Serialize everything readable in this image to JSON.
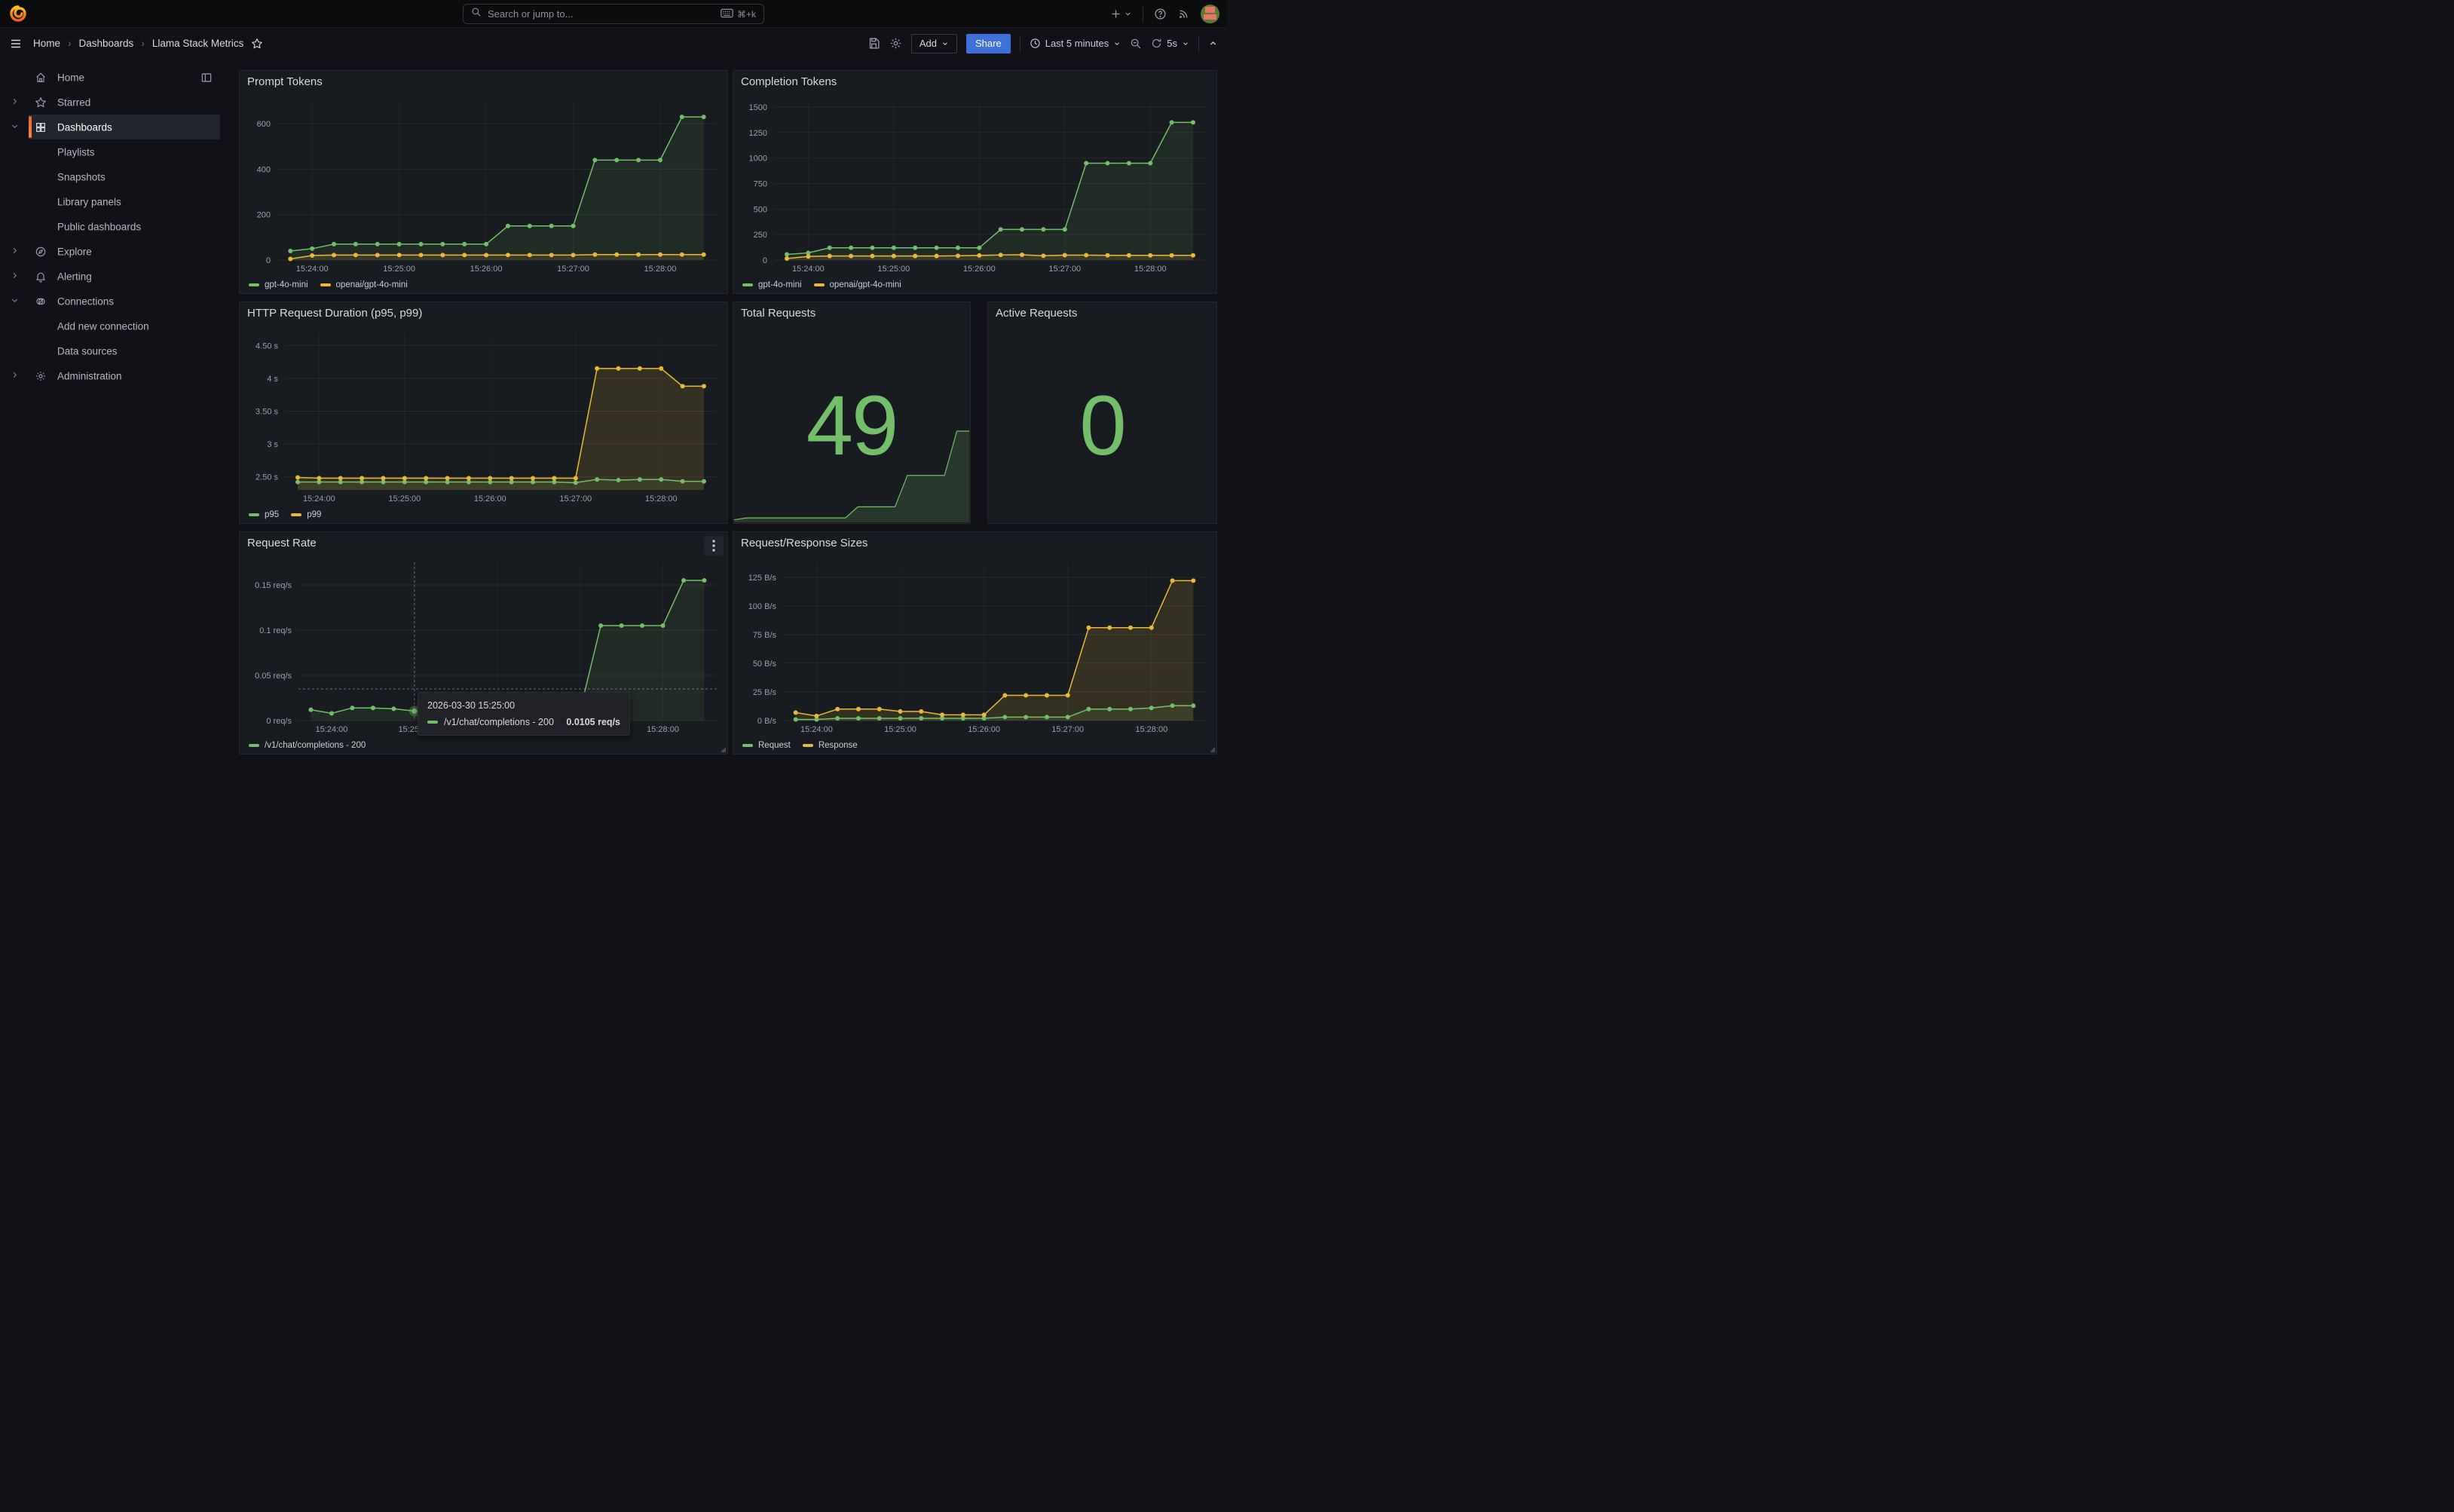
{
  "header": {
    "search_placeholder": "Search or jump to...",
    "search_shortcut": "⌘+k"
  },
  "breadcrumb": {
    "items": [
      "Home",
      "Dashboards",
      "Llama Stack Metrics"
    ]
  },
  "toolbar": {
    "add_label": "Add",
    "share_label": "Share",
    "time_range": "Last 5 minutes",
    "refresh_interval": "5s"
  },
  "sidebar": {
    "items": [
      {
        "label": "Home",
        "level": 0
      },
      {
        "label": "Starred",
        "level": 0
      },
      {
        "label": "Dashboards",
        "level": 0,
        "active": true
      },
      {
        "label": "Playlists",
        "level": 1
      },
      {
        "label": "Snapshots",
        "level": 1
      },
      {
        "label": "Library panels",
        "level": 1
      },
      {
        "label": "Public dashboards",
        "level": 1
      },
      {
        "label": "Explore",
        "level": 0
      },
      {
        "label": "Alerting",
        "level": 0
      },
      {
        "label": "Connections",
        "level": 0
      },
      {
        "label": "Add new connection",
        "level": 1
      },
      {
        "label": "Data sources",
        "level": 1
      },
      {
        "label": "Administration",
        "level": 0
      }
    ]
  },
  "stats": {
    "total_requests": {
      "title": "Total Requests",
      "value": "49"
    },
    "active_requests": {
      "title": "Active Requests",
      "value": "0"
    }
  },
  "tooltip": {
    "time": "2026-03-30 15:25:00",
    "series": "/v1/chat/completions - 200",
    "value": "0.0105 req/s"
  },
  "colors": {
    "green": "#73bf69",
    "yellow": "#eab839",
    "accent_blue": "#3d71d9",
    "stat_green": "#73bf69"
  },
  "chart_data": {
    "times": [
      "15:23:45",
      "15:24:00",
      "15:24:15",
      "15:24:30",
      "15:24:45",
      "15:25:00",
      "15:25:15",
      "15:25:30",
      "15:25:45",
      "15:26:00",
      "15:26:15",
      "15:26:30",
      "15:26:45",
      "15:27:00",
      "15:27:15",
      "15:27:30",
      "15:27:45",
      "15:28:00",
      "15:28:15",
      "15:28:30"
    ],
    "prompt_tokens": {
      "type": "line",
      "title": "Prompt Tokens",
      "margin_left": 46,
      "ylim": [
        0,
        700
      ],
      "yticks": [
        {
          "v": 0,
          "label": "0"
        },
        {
          "v": 200,
          "label": "200"
        },
        {
          "v": 400,
          "label": "400"
        },
        {
          "v": 600,
          "label": "600"
        }
      ],
      "xticks": [
        {
          "i": 1,
          "label": "15:24:00"
        },
        {
          "i": 5,
          "label": "15:25:00"
        },
        {
          "i": 9,
          "label": "15:26:00"
        },
        {
          "i": 13,
          "label": "15:27:00"
        },
        {
          "i": 17,
          "label": "15:28:00"
        }
      ],
      "series": [
        {
          "name": "gpt-4o-mini",
          "color": "#73bf69",
          "fill": 0.1,
          "values": [
            40,
            50,
            70,
            70,
            70,
            70,
            70,
            70,
            70,
            70,
            150,
            150,
            150,
            150,
            440,
            440,
            440,
            440,
            630,
            630
          ]
        },
        {
          "name": "openai/gpt-4o-mini",
          "color": "#eab839",
          "fill": 0.12,
          "values": [
            5,
            20,
            22,
            22,
            22,
            22,
            22,
            22,
            22,
            22,
            22,
            22,
            22,
            22,
            24,
            24,
            24,
            24,
            24,
            24
          ]
        }
      ]
    },
    "completion_tokens": {
      "type": "line",
      "title": "Completion Tokens",
      "margin_left": 50,
      "ylim": [
        0,
        1560
      ],
      "yticks": [
        {
          "v": 0,
          "label": "0"
        },
        {
          "v": 250,
          "label": "250"
        },
        {
          "v": 500,
          "label": "500"
        },
        {
          "v": 750,
          "label": "750"
        },
        {
          "v": 1000,
          "label": "1000"
        },
        {
          "v": 1250,
          "label": "1250"
        },
        {
          "v": 1500,
          "label": "1500"
        }
      ],
      "xticks": [
        {
          "i": 1,
          "label": "15:24:00"
        },
        {
          "i": 5,
          "label": "15:25:00"
        },
        {
          "i": 9,
          "label": "15:26:00"
        },
        {
          "i": 13,
          "label": "15:27:00"
        },
        {
          "i": 17,
          "label": "15:28:00"
        }
      ],
      "series": [
        {
          "name": "gpt-4o-mini",
          "color": "#73bf69",
          "fill": 0.1,
          "values": [
            55,
            70,
            120,
            120,
            120,
            120,
            120,
            120,
            120,
            120,
            300,
            300,
            300,
            300,
            950,
            950,
            950,
            950,
            1350,
            1350
          ]
        },
        {
          "name": "openai/gpt-4o-mini",
          "color": "#eab839",
          "fill": 0.12,
          "values": [
            15,
            35,
            40,
            40,
            40,
            40,
            40,
            40,
            42,
            45,
            50,
            52,
            42,
            48,
            48,
            46,
            46,
            46,
            46,
            46
          ]
        }
      ]
    },
    "http_duration": {
      "type": "line",
      "title": "HTTP Request Duration (p95, p99)",
      "margin_left": 56,
      "ylim": [
        2.3,
        4.7
      ],
      "yticks": [
        {
          "v": 2.5,
          "label": "2.50 s"
        },
        {
          "v": 3,
          "label": "3 s"
        },
        {
          "v": 3.5,
          "label": "3.50 s"
        },
        {
          "v": 4,
          "label": "4 s"
        },
        {
          "v": 4.5,
          "label": "4.50 s"
        }
      ],
      "xticks": [
        {
          "i": 1,
          "label": "15:24:00"
        },
        {
          "i": 5,
          "label": "15:25:00"
        },
        {
          "i": 9,
          "label": "15:26:00"
        },
        {
          "i": 13,
          "label": "15:27:00"
        },
        {
          "i": 17,
          "label": "15:28:00"
        }
      ],
      "series": [
        {
          "name": "p95",
          "color": "#73bf69",
          "fill": 0.1,
          "values": [
            2.42,
            2.42,
            2.42,
            2.42,
            2.42,
            2.42,
            2.42,
            2.42,
            2.42,
            2.42,
            2.42,
            2.42,
            2.42,
            2.41,
            2.46,
            2.45,
            2.46,
            2.46,
            2.43,
            2.43
          ]
        },
        {
          "name": "p99",
          "color": "#eab839",
          "fill": 0.14,
          "values": [
            2.49,
            2.48,
            2.48,
            2.48,
            2.48,
            2.48,
            2.48,
            2.48,
            2.48,
            2.48,
            2.48,
            2.48,
            2.48,
            2.48,
            4.15,
            4.15,
            4.15,
            4.15,
            3.88,
            3.88
          ]
        }
      ]
    },
    "request_rate": {
      "type": "line",
      "title": "Request Rate",
      "margin_left": 74,
      "ylim": [
        0,
        0.175
      ],
      "yticks": [
        {
          "v": 0,
          "label": "0 req/s"
        },
        {
          "v": 0.05,
          "label": "0.05 req/s"
        },
        {
          "v": 0.1,
          "label": "0.1 req/s"
        },
        {
          "v": 0.15,
          "label": "0.15 req/s"
        }
      ],
      "xticks": [
        {
          "i": 1,
          "label": "15:24:00"
        },
        {
          "i": 5,
          "label": "15:25:00"
        },
        {
          "i": 9,
          "label": "15:26:00"
        },
        {
          "i": 13,
          "label": "15:27:00"
        },
        {
          "i": 17,
          "label": "15:28:00"
        }
      ],
      "crosshair": {
        "i": 5,
        "y": 0.035
      },
      "series": [
        {
          "name": "/v1/chat/completions - 200",
          "color": "#73bf69",
          "fill": 0.1,
          "values": [
            0.012,
            0.008,
            0.014,
            0.014,
            0.013,
            0.0105,
            0.011,
            0.011,
            0.011,
            0.011,
            0.011,
            0.011,
            0.011,
            0.011,
            0.105,
            0.105,
            0.105,
            0.105,
            0.155,
            0.155
          ]
        }
      ]
    },
    "request_response_sizes": {
      "type": "line",
      "title": "Request/Response Sizes",
      "margin_left": 62,
      "ylim": [
        0,
        138
      ],
      "yticks": [
        {
          "v": 0,
          "label": "0 B/s"
        },
        {
          "v": 25,
          "label": "25 B/s"
        },
        {
          "v": 50,
          "label": "50 B/s"
        },
        {
          "v": 75,
          "label": "75 B/s"
        },
        {
          "v": 100,
          "label": "100 B/s"
        },
        {
          "v": 125,
          "label": "125 B/s"
        }
      ],
      "xticks": [
        {
          "i": 1,
          "label": "15:24:00"
        },
        {
          "i": 5,
          "label": "15:25:00"
        },
        {
          "i": 9,
          "label": "15:26:00"
        },
        {
          "i": 13,
          "label": "15:27:00"
        },
        {
          "i": 17,
          "label": "15:28:00"
        }
      ],
      "series": [
        {
          "name": "Request",
          "color": "#73bf69",
          "fill": 0.1,
          "values": [
            1,
            1,
            2,
            2,
            2,
            2,
            2,
            2,
            2,
            2,
            3,
            3,
            3,
            3,
            10,
            10,
            10,
            11,
            13,
            13
          ]
        },
        {
          "name": "Response",
          "color": "#eab839",
          "fill": 0.14,
          "values": [
            7,
            4,
            10,
            10,
            10,
            8,
            8,
            5,
            5,
            5,
            22,
            22,
            22,
            22,
            81,
            81,
            81,
            81,
            122,
            122
          ]
        }
      ]
    },
    "total_requests_spark": {
      "type": "area",
      "color": "#73bf69",
      "max": 49,
      "values": [
        1,
        2,
        2,
        2,
        2,
        2,
        2,
        2,
        2,
        2,
        8,
        8,
        8,
        8,
        25,
        25,
        25,
        25,
        49,
        49
      ]
    }
  }
}
